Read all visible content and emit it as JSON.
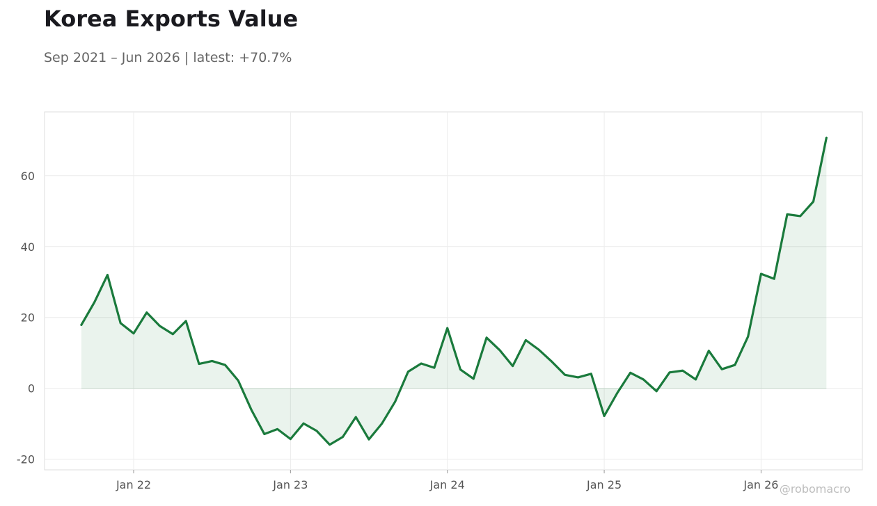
{
  "chart_data": {
    "type": "area",
    "title": "Korea Exports Value",
    "subtitle": "Sep 2021 – Jun 2026 | latest: +70.7%",
    "ylim": [
      -23,
      78
    ],
    "y_ticks": [
      60,
      40,
      20,
      0,
      -20
    ],
    "y_tick_labels": [
      "60",
      "40",
      "20",
      "0",
      "-20"
    ],
    "x_ticks": [
      {
        "date": "2022-01",
        "label": "Jan 22"
      },
      {
        "date": "2023-01",
        "label": "Jan 23"
      },
      {
        "date": "2024-01",
        "label": "Jan 24"
      },
      {
        "date": "2025-01",
        "label": "Jan 25"
      },
      {
        "date": "2026-01",
        "label": "Jan 26"
      }
    ],
    "grid": true,
    "series": [
      {
        "color": "#1a7a3c",
        "fill_color": "#1a7a3c",
        "points": [
          {
            "x": "2021-09",
            "y": 17.9
          },
          {
            "x": "2021-10",
            "y": 24.3
          },
          {
            "x": "2021-11",
            "y": 32.0
          },
          {
            "x": "2021-12",
            "y": 18.4
          },
          {
            "x": "2022-01",
            "y": 15.5
          },
          {
            "x": "2022-02",
            "y": 21.4
          },
          {
            "x": "2022-03",
            "y": 17.6
          },
          {
            "x": "2022-04",
            "y": 15.3
          },
          {
            "x": "2022-05",
            "y": 19.0
          },
          {
            "x": "2022-06",
            "y": 6.9
          },
          {
            "x": "2022-07",
            "y": 7.7
          },
          {
            "x": "2022-08",
            "y": 6.6
          },
          {
            "x": "2022-09",
            "y": 2.2
          },
          {
            "x": "2022-10",
            "y": -6.0
          },
          {
            "x": "2022-11",
            "y": -12.9
          },
          {
            "x": "2022-12",
            "y": -11.5
          },
          {
            "x": "2023-01",
            "y": -14.3
          },
          {
            "x": "2023-02",
            "y": -9.9
          },
          {
            "x": "2023-03",
            "y": -12.0
          },
          {
            "x": "2023-04",
            "y": -15.9
          },
          {
            "x": "2023-05",
            "y": -13.7
          },
          {
            "x": "2023-06",
            "y": -8.1
          },
          {
            "x": "2023-07",
            "y": -14.4
          },
          {
            "x": "2023-08",
            "y": -9.9
          },
          {
            "x": "2023-09",
            "y": -3.8
          },
          {
            "x": "2023-10",
            "y": 4.7
          },
          {
            "x": "2023-11",
            "y": 7.0
          },
          {
            "x": "2023-12",
            "y": 5.8
          },
          {
            "x": "2024-01",
            "y": 17.0
          },
          {
            "x": "2024-02",
            "y": 5.3
          },
          {
            "x": "2024-03",
            "y": 2.7
          },
          {
            "x": "2024-04",
            "y": 14.3
          },
          {
            "x": "2024-05",
            "y": 10.8
          },
          {
            "x": "2024-06",
            "y": 6.3
          },
          {
            "x": "2024-07",
            "y": 13.6
          },
          {
            "x": "2024-08",
            "y": 10.9
          },
          {
            "x": "2024-09",
            "y": 7.5
          },
          {
            "x": "2024-10",
            "y": 3.8
          },
          {
            "x": "2024-11",
            "y": 3.1
          },
          {
            "x": "2024-12",
            "y": 4.1
          },
          {
            "x": "2025-01",
            "y": -7.8
          },
          {
            "x": "2025-02",
            "y": -1.3
          },
          {
            "x": "2025-03",
            "y": 4.4
          },
          {
            "x": "2025-04",
            "y": 2.5
          },
          {
            "x": "2025-05",
            "y": -0.8
          },
          {
            "x": "2025-06",
            "y": 4.5
          },
          {
            "x": "2025-07",
            "y": 5.0
          },
          {
            "x": "2025-08",
            "y": 2.5
          },
          {
            "x": "2025-09",
            "y": 10.6
          },
          {
            "x": "2025-10",
            "y": 5.4
          },
          {
            "x": "2025-11",
            "y": 6.6
          },
          {
            "x": "2025-12",
            "y": 14.6
          },
          {
            "x": "2026-01",
            "y": 32.3
          },
          {
            "x": "2026-02",
            "y": 30.9
          },
          {
            "x": "2026-03",
            "y": 49.1
          },
          {
            "x": "2026-04",
            "y": 48.6
          },
          {
            "x": "2026-05",
            "y": 52.7
          },
          {
            "x": "2026-06",
            "y": 70.7
          }
        ]
      }
    ]
  },
  "watermark": "@robomacro"
}
